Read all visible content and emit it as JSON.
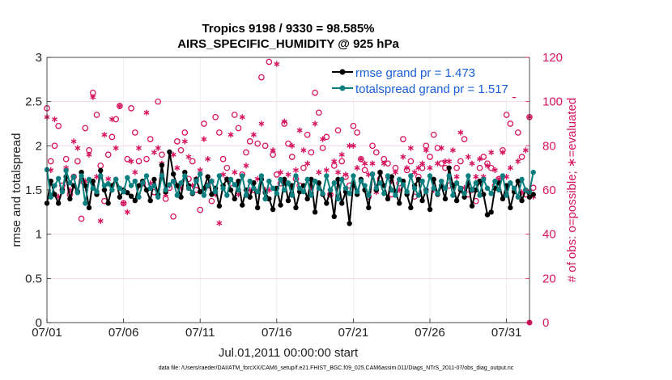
{
  "chart_data": {
    "type": "line",
    "title": "Tropics 9198 / 9330 = 98.585%",
    "subtitle": "AIRS_SPECIFIC_HUMIDITY @ 925 hPa",
    "xlabel": "Jul.01,2011 00:00:00 start",
    "ylabel": "rmse and totalspread",
    "ylabel_right": "# of obs: o=possible; ∗=evaluated",
    "xlim": [
      0,
      31.5
    ],
    "ylim": [
      0,
      3
    ],
    "ylim_right": [
      0,
      120
    ],
    "x_ticks": [
      {
        "x": 0,
        "label": "07/01"
      },
      {
        "x": 5,
        "label": "07/06"
      },
      {
        "x": 10,
        "label": "07/11"
      },
      {
        "x": 15,
        "label": "07/16"
      },
      {
        "x": 20,
        "label": "07/21"
      },
      {
        "x": 25,
        "label": "07/26"
      },
      {
        "x": 30,
        "label": "07/31"
      }
    ],
    "y_ticks": [
      "0",
      "0.5",
      "1",
      "1.5",
      "2",
      "2.5",
      "3"
    ],
    "y_ticks_right": [
      "0",
      "20",
      "40",
      "60",
      "80",
      "100",
      "120"
    ],
    "legend": {
      "position": "top-right",
      "entries": [
        "rmse grand pr = 1.473",
        "totalspread grand pr = 1.517"
      ]
    },
    "x_step": 0.25,
    "series": [
      {
        "name": "rmse",
        "color": "#000000",
        "axis": "left",
        "values": [
          1.35,
          1.6,
          1.45,
          1.35,
          1.5,
          1.65,
          1.4,
          1.55,
          1.48,
          1.7,
          1.55,
          1.3,
          1.6,
          1.45,
          1.72,
          1.5,
          1.35,
          1.55,
          1.62,
          1.42,
          1.5,
          1.47,
          1.43,
          1.38,
          1.55,
          1.6,
          1.5,
          1.38,
          1.62,
          1.45,
          1.78,
          1.48,
          1.93,
          1.68,
          1.55,
          1.42,
          1.7,
          1.55,
          1.46,
          1.62,
          1.48,
          1.52,
          1.65,
          1.45,
          1.52,
          1.32,
          1.55,
          1.62,
          1.5,
          1.4,
          1.6,
          1.33,
          1.5,
          1.42,
          1.58,
          1.3,
          1.62,
          1.47,
          1.4,
          1.28,
          1.52,
          1.33,
          1.62,
          1.38,
          1.55,
          1.3,
          1.48,
          1.55,
          1.4,
          1.62,
          1.25,
          1.58,
          1.45,
          1.35,
          1.5,
          1.2,
          1.62,
          1.35,
          1.48,
          1.12,
          1.58,
          1.45,
          1.62,
          1.5,
          1.3,
          1.68,
          1.5,
          1.7,
          1.55,
          1.4,
          1.65,
          1.48,
          1.35,
          1.6,
          1.45,
          1.3,
          1.55,
          1.62,
          1.38,
          1.5,
          1.28,
          1.62,
          1.45,
          1.55,
          1.4,
          1.75,
          1.55,
          1.38,
          1.5,
          1.42,
          1.58,
          1.32,
          1.5,
          1.6,
          1.45,
          1.22,
          1.25,
          1.52,
          1.58,
          1.4,
          1.55,
          1.3,
          1.48,
          1.6,
          1.38,
          1.5,
          1.42,
          1.45
        ]
      },
      {
        "name": "totalspread",
        "color": "#0b7f7f",
        "axis": "left",
        "values": [
          1.73,
          1.42,
          1.55,
          1.63,
          1.48,
          1.72,
          1.58,
          1.65,
          1.47,
          1.66,
          1.35,
          1.62,
          1.52,
          1.48,
          1.66,
          1.55,
          1.57,
          1.5,
          1.62,
          1.52,
          1.48,
          1.64,
          1.55,
          1.6,
          1.42,
          1.58,
          1.66,
          1.52,
          1.55,
          1.42,
          1.66,
          1.5,
          1.56,
          1.6,
          1.44,
          1.58,
          1.66,
          1.52,
          1.47,
          1.6,
          1.68,
          1.44,
          1.55,
          1.6,
          1.48,
          1.66,
          1.52,
          1.44,
          1.62,
          1.56,
          1.5,
          1.66,
          1.44,
          1.6,
          1.52,
          1.48,
          1.66,
          1.4,
          1.6,
          1.52,
          1.46,
          1.62,
          1.5,
          1.58,
          1.44,
          1.66,
          1.52,
          1.48,
          1.62,
          1.44,
          1.6,
          1.52,
          1.46,
          1.66,
          1.5,
          1.58,
          1.4,
          1.62,
          1.52,
          1.46,
          1.66,
          1.48,
          1.6,
          1.55,
          1.44,
          1.68,
          1.52,
          1.58,
          1.46,
          1.66,
          1.5,
          1.44,
          1.62,
          1.56,
          1.48,
          1.66,
          1.52,
          1.44,
          1.6,
          1.48,
          1.66,
          1.52,
          1.46,
          1.6,
          1.52,
          1.66,
          1.44,
          1.58,
          1.52,
          1.46,
          1.66,
          1.5,
          1.58,
          1.44,
          1.62,
          1.52,
          1.46,
          1.6,
          1.5,
          1.66,
          1.44,
          1.58,
          1.52,
          1.42,
          1.62,
          1.5,
          1.48,
          1.7
        ]
      },
      {
        "name": "obs possible",
        "color": "#d6145f",
        "axis": "right",
        "marker": "o",
        "values": [
          97,
          73,
          80,
          89,
          62,
          74,
          58,
          66,
          73,
          47,
          88,
          78,
          104,
          94,
          71,
          55,
          76,
          84,
          92,
          98,
          54,
          74,
          97,
          86,
          73,
          63,
          74,
          83,
          59,
          100,
          76,
          56,
          61,
          48,
          82,
          78,
          86,
          65,
          73,
          60,
          51,
          90,
          62,
          55,
          93,
          86,
          74,
          70,
          63,
          94,
          88,
          67,
          77,
          82,
          60,
          81,
          111,
          80,
          118,
          76,
          67,
          63,
          90,
          81,
          75,
          65,
          62,
          70,
          85,
          77,
          104,
          95,
          79,
          84,
          58,
          71,
          87,
          73,
          66,
          62,
          89,
          86,
          74,
          69,
          57,
          80,
          77,
          65,
          74,
          72,
          58,
          70,
          63,
          83,
          69,
          73,
          57,
          66,
          70,
          80,
          75,
          85,
          79,
          72,
          70,
          62,
          62,
          70,
          73,
          83,
          58,
          60,
          55,
          70,
          75,
          72,
          70,
          62,
          65,
          78,
          94,
          90,
          103,
          86,
          75,
          58,
          93,
          61
        ]
      },
      {
        "name": "obs evaluated",
        "color": "#d6145f",
        "axis": "right",
        "marker": "*",
        "values": [
          93,
          69,
          92,
          57,
          60,
          70,
          60,
          82,
          79,
          64,
          64,
          76,
          102,
          66,
          46,
          85,
          65,
          92,
          79,
          98,
          54,
          50,
          73,
          68,
          79,
          63,
          95,
          63,
          77,
          79,
          72,
          58,
          62,
          76,
          70,
          61,
          82,
          75,
          62,
          65,
          69,
          83,
          74,
          64,
          58,
          45,
          67,
          65,
          85,
          68,
          58,
          93,
          71,
          60,
          85,
          65,
          90,
          60,
          60,
          78,
          117,
          68,
          91,
          67,
          80,
          69,
          87,
          78,
          72,
          61,
          90,
          68,
          83,
          69,
          58,
          73,
          68,
          76,
          67,
          80,
          80,
          70,
          74,
          72,
          67,
          72,
          59,
          68,
          72,
          66,
          64,
          68,
          60,
          75,
          70,
          79,
          68,
          70,
          72,
          78,
          70,
          60,
          72,
          79,
          73,
          73,
          78,
          66,
          86,
          61,
          75,
          72,
          66,
          74,
          66,
          71,
          77,
          69,
          65,
          77,
          66,
          70,
          103,
          73,
          59,
          78,
          93,
          57
        ]
      }
    ],
    "footer": "data file: /Users/raeder/DAI/ATM_forcXX/CAM6_setup/f.e21.FHIST_BGC.f09_025.CAM6assim.011/Diags_NTrS_2011-07/obs_diag_output.nc"
  }
}
